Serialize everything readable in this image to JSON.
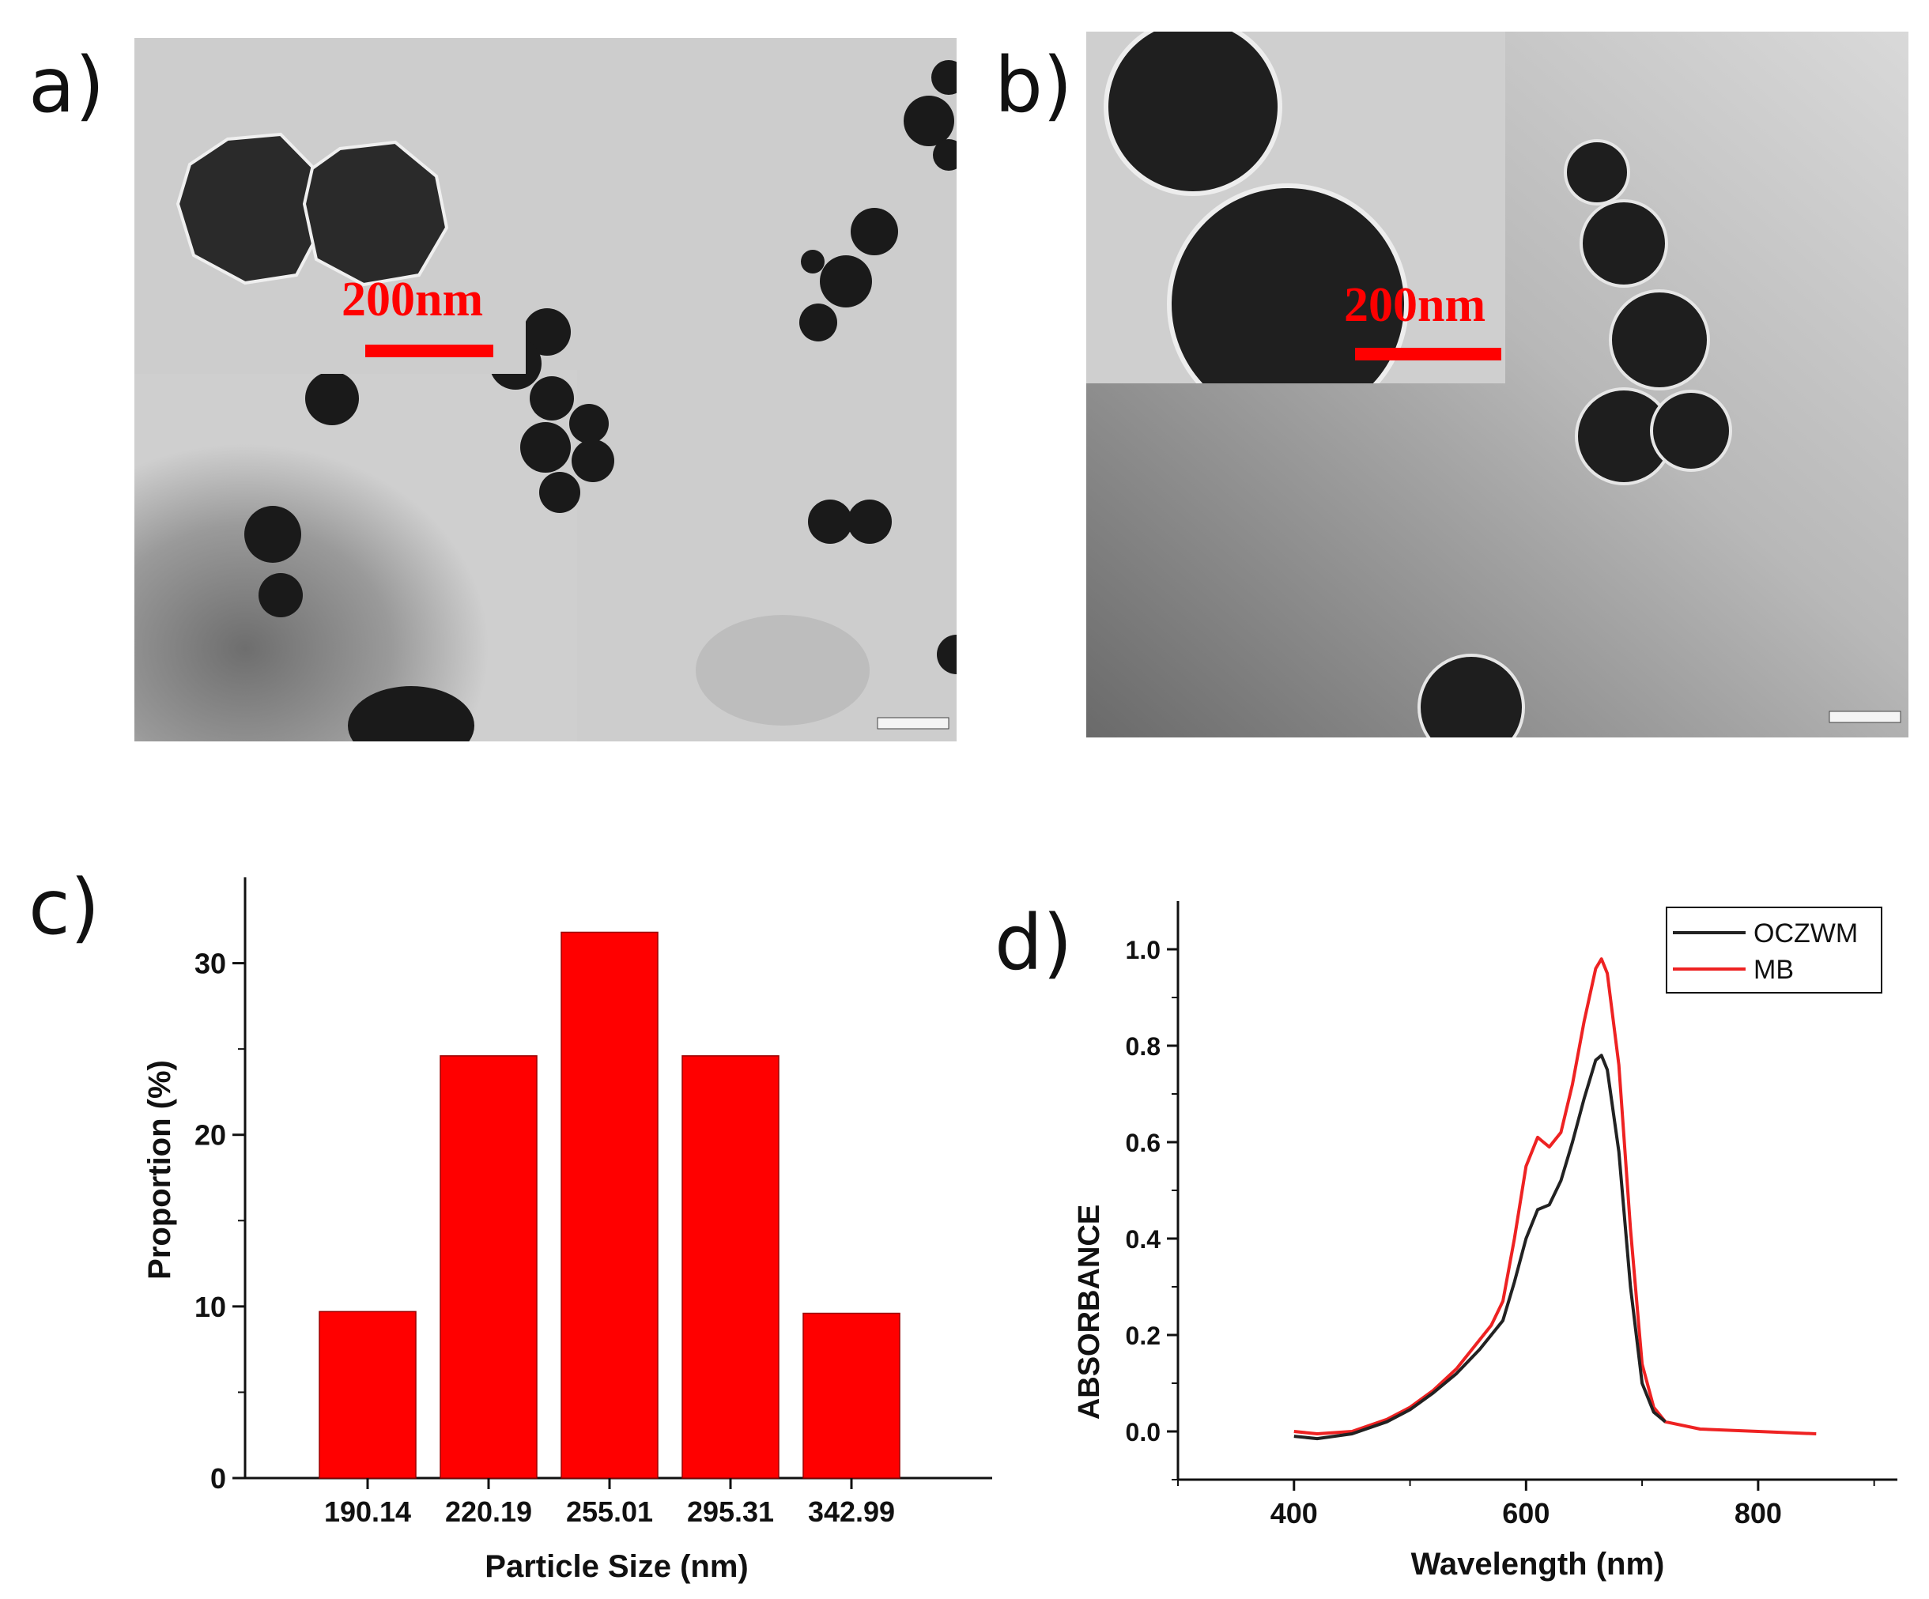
{
  "panels": {
    "a": {
      "label": "a)"
    },
    "b": {
      "label": "b)"
    },
    "c": {
      "label": "c)"
    },
    "d": {
      "label": "d)"
    }
  },
  "insets": {
    "a": {
      "scale_text": "200nm"
    },
    "b": {
      "scale_text": "200nm"
    }
  },
  "colors": {
    "red": "#ff0000",
    "black": "#222222"
  },
  "chart_data": [
    {
      "type": "bar",
      "categories": [
        "190.14",
        "220.19",
        "255.01",
        "295.31",
        "342.99"
      ],
      "values": [
        9.7,
        24.6,
        31.8,
        24.6,
        9.6
      ],
      "xlabel": "Particle Size (nm)",
      "ylabel": "Proportion (%)",
      "ylim": [
        0,
        35
      ],
      "yticks": [
        0,
        10,
        20,
        30
      ],
      "bar_color": "#ff0000"
    },
    {
      "type": "line",
      "xlabel": "Wavelength (nm)",
      "ylabel": "ABSORBANCE",
      "xlim": [
        300,
        920
      ],
      "ylim": [
        -0.1,
        1.1
      ],
      "xticks": [
        400,
        600,
        800
      ],
      "yticks": [
        "0.0",
        "0.2",
        "0.4",
        "0.6",
        "0.8",
        "1.0"
      ],
      "legend_position": "top-right",
      "series": [
        {
          "name": "OCZWM",
          "color": "#222222",
          "x": [
            400,
            420,
            450,
            480,
            500,
            520,
            540,
            560,
            570,
            580,
            590,
            600,
            610,
            620,
            630,
            640,
            650,
            660,
            665,
            670,
            680,
            690,
            700,
            710,
            720
          ],
          "y": [
            -0.01,
            -0.015,
            -0.005,
            0.02,
            0.045,
            0.08,
            0.12,
            0.17,
            0.2,
            0.23,
            0.31,
            0.4,
            0.46,
            0.47,
            0.52,
            0.6,
            0.69,
            0.77,
            0.78,
            0.75,
            0.58,
            0.3,
            0.1,
            0.04,
            0.02
          ]
        },
        {
          "name": "MB",
          "color": "#ee2222",
          "x": [
            400,
            420,
            450,
            480,
            500,
            520,
            540,
            560,
            570,
            580,
            590,
            600,
            610,
            615,
            620,
            630,
            640,
            650,
            660,
            665,
            670,
            680,
            690,
            700,
            710,
            720,
            750,
            800,
            850
          ],
          "y": [
            0.0,
            -0.005,
            0.0,
            0.025,
            0.05,
            0.085,
            0.13,
            0.19,
            0.22,
            0.27,
            0.4,
            0.55,
            0.61,
            0.6,
            0.59,
            0.62,
            0.72,
            0.85,
            0.96,
            0.98,
            0.95,
            0.76,
            0.42,
            0.14,
            0.05,
            0.02,
            0.005,
            0.0,
            -0.005
          ]
        }
      ]
    }
  ]
}
